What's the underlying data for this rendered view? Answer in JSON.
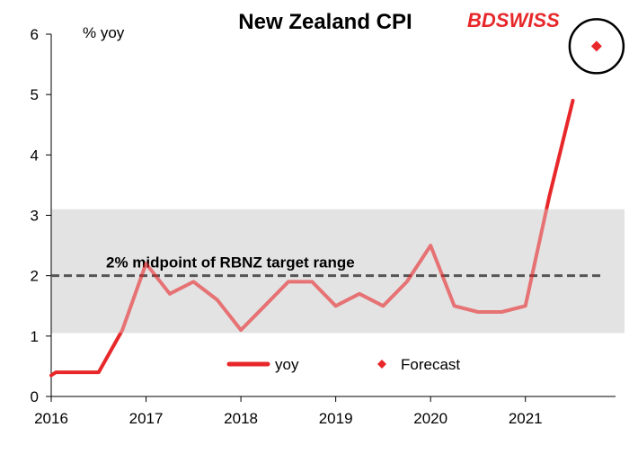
{
  "chart_data": {
    "type": "line",
    "title": "New Zealand CPI",
    "ylabel": "% yoy",
    "xlabel": "",
    "ylim": [
      0,
      6
    ],
    "xlim": [
      2016.0,
      2021.95
    ],
    "yticks": [
      0,
      1,
      2,
      3,
      4,
      5,
      6
    ],
    "xticks": [
      2016,
      2017,
      2018,
      2019,
      2020,
      2021
    ],
    "grid": false,
    "legend_position": "bottom-center",
    "target_band": {
      "low": 1.05,
      "high": 3.1,
      "color": "#e3e3e3"
    },
    "midpoint": {
      "value": 2,
      "label": "2% midpoint of RBNZ target range"
    },
    "series": [
      {
        "name": "yoy",
        "color": "#e8272a",
        "x": [
          2016.0,
          2016.05,
          2016.25,
          2016.5,
          2016.75,
          2017.0,
          2017.25,
          2017.5,
          2017.75,
          2018.0,
          2018.25,
          2018.5,
          2018.75,
          2019.0,
          2019.25,
          2019.5,
          2019.75,
          2020.0,
          2020.25,
          2020.5,
          2020.75,
          2021.0,
          2021.25,
          2021.5
        ],
        "values": [
          0.35,
          0.4,
          0.4,
          0.4,
          1.1,
          2.2,
          1.7,
          1.9,
          1.6,
          1.1,
          1.5,
          1.9,
          1.9,
          1.5,
          1.7,
          1.5,
          1.9,
          2.5,
          1.5,
          1.4,
          1.4,
          1.5,
          3.3,
          4.9
        ]
      },
      {
        "name": "Forecast",
        "color": "#e8272a",
        "marker": "diamond",
        "x": [
          2021.75
        ],
        "values": [
          5.8
        ]
      }
    ]
  },
  "branding": {
    "logo_bd": "BD",
    "logo_swiss": "SWISS"
  },
  "colors": {
    "accent": "#e8272a",
    "band": "#e3e3e3",
    "midpoint": "#555555"
  }
}
